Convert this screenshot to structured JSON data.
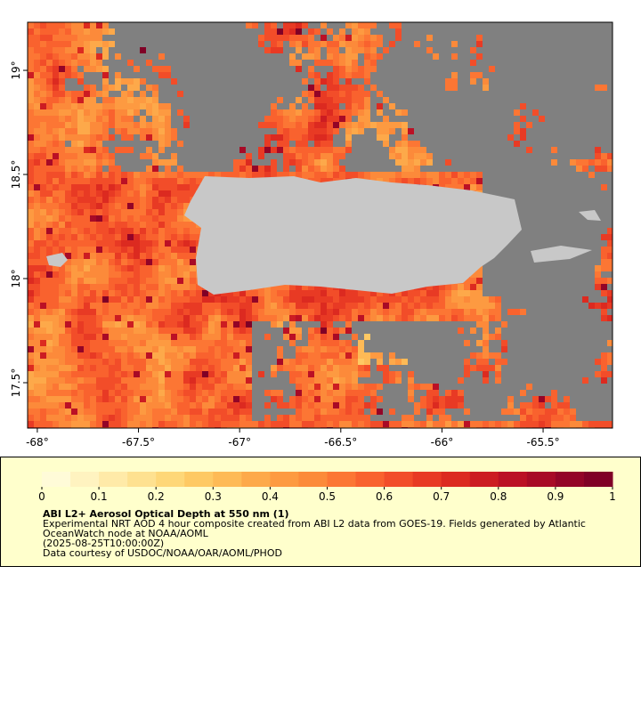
{
  "map": {
    "xlim": [
      -68.048,
      -65.157
    ],
    "ylim": [
      17.282,
      19.231
    ],
    "xticks": [
      {
        "value": -68,
        "label": "-68°"
      },
      {
        "value": -67.5,
        "label": "-67.5°"
      },
      {
        "value": -67,
        "label": "-67°"
      },
      {
        "value": -66.5,
        "label": "-66.5°"
      },
      {
        "value": -66,
        "label": "-66°"
      },
      {
        "value": -65.5,
        "label": "-65.5°"
      }
    ],
    "yticks": [
      {
        "value": 17.5,
        "label": "17.5°"
      },
      {
        "value": 18,
        "label": "18°"
      },
      {
        "value": 18.5,
        "label": "18.5°"
      },
      {
        "value": 19,
        "label": "19°"
      }
    ],
    "land_color": "#c8c8c8",
    "missing_color": "#808080"
  },
  "colorbar": {
    "lim": [
      0,
      1
    ],
    "ticks": [
      0,
      0.1,
      0.2,
      0.3,
      0.4,
      0.5,
      0.6,
      0.7,
      0.8,
      0.9,
      1
    ],
    "colors": [
      "#fffbd8",
      "#fff3c0",
      "#ffeaa8",
      "#fee190",
      "#fed778",
      "#fec964",
      "#feba56",
      "#fda94a",
      "#fd9a41",
      "#fc8a3a",
      "#fc7634",
      "#f9622e",
      "#f24d29",
      "#e83a24",
      "#dc2a20",
      "#cc1c22",
      "#bb1025",
      "#a80a26",
      "#930427",
      "#800026"
    ]
  },
  "caption": {
    "title": "ABI L2+ Aerosol Optical Depth at 550 nm (1)",
    "lines": [
      "Experimental NRT AOD 4 hour composite created from ABI L2 data from GOES-19. Fields generated by Atlantic",
      "OceanWatch node at NOAA/AOML",
      "(2025-08-25T10:00:00Z)",
      "Data courtesy of USDOC/NOAA/OAR/AOML/PHOD"
    ]
  }
}
